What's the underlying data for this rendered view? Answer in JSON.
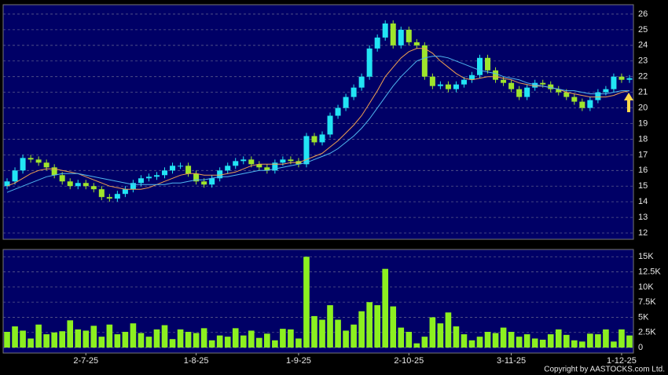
{
  "chart_data": [
    {
      "type": "candlestick",
      "up_color": "#22e4f4",
      "down_color": "#9fe52c",
      "open": [
        15.0,
        15.3,
        16,
        16.8,
        16.7,
        16.5,
        16.2,
        15.7,
        15.3,
        15,
        15.2,
        15,
        14.8,
        14.3,
        14.2,
        14.5,
        14.8,
        15.2,
        15.5,
        15.6,
        15.7,
        16,
        16.3,
        16.3,
        15.8,
        15.3,
        15.1,
        15.5,
        16,
        16.3,
        16.6,
        16.7,
        16.4,
        16.2,
        16,
        16.5,
        16.7,
        16.6,
        16.4,
        18.2,
        17.8,
        18.3,
        19.5,
        20,
        20.7,
        21.3,
        22,
        23.8,
        24.5,
        25.4,
        24,
        25,
        24.2,
        24,
        22,
        21.4,
        21.5,
        21.2,
        21.5,
        21.8,
        22.1,
        23.2,
        22.4,
        21.8,
        21.6,
        21.2,
        20.7,
        21.3,
        21.6,
        21.5,
        21.2,
        21,
        20.7,
        20.4,
        20,
        20.5,
        21,
        21.2,
        22,
        21.8
      ],
      "high": [
        15.5,
        16.2,
        17,
        17,
        16.9,
        16.7,
        16.4,
        15.9,
        15.5,
        15.4,
        15.4,
        15.2,
        15,
        14.5,
        14.7,
        15,
        15.4,
        15.7,
        15.8,
        15.9,
        16.2,
        16.5,
        16.5,
        16.5,
        16,
        15.5,
        15.7,
        16.2,
        16.5,
        16.8,
        16.9,
        16.9,
        16.6,
        16.4,
        16.7,
        16.9,
        16.9,
        16.8,
        18.4,
        18.4,
        18.5,
        19.7,
        20.2,
        20.9,
        21.5,
        22.2,
        24,
        24.7,
        25.6,
        25.6,
        25.2,
        25.2,
        24.4,
        24.2,
        22.2,
        21.7,
        21.7,
        21.7,
        22,
        22.3,
        23.4,
        23.4,
        22.6,
        22,
        21.8,
        21.4,
        21.5,
        21.8,
        21.8,
        21.7,
        21.4,
        21.2,
        20.9,
        20.6,
        20.7,
        21.2,
        21.4,
        22.2,
        22.2,
        22.1
      ],
      "low": [
        14.8,
        15.1,
        15.8,
        16.5,
        16.3,
        16,
        15.5,
        15.1,
        14.8,
        14.8,
        14.8,
        14.6,
        14.1,
        14,
        14,
        14.3,
        14.6,
        15,
        15.3,
        15.4,
        15.5,
        15.8,
        16.1,
        15.6,
        15.1,
        14.9,
        14.9,
        15.3,
        15.8,
        16.1,
        16.4,
        16.2,
        16,
        15.8,
        15.8,
        16.3,
        16.4,
        16.2,
        16.2,
        17.6,
        17.6,
        18.1,
        19.3,
        19.8,
        20.5,
        21.1,
        21.8,
        23.6,
        24.3,
        23.8,
        23.8,
        24,
        23.8,
        21.8,
        21.2,
        21.2,
        21,
        21,
        21.3,
        21.6,
        21.9,
        22.2,
        21.6,
        21.4,
        21,
        20.5,
        20.5,
        21.1,
        21.3,
        21,
        20.8,
        20.5,
        20.2,
        19.8,
        19.8,
        20.3,
        20.8,
        21,
        21.6,
        21.6
      ],
      "close": [
        15.3,
        16,
        16.8,
        16.7,
        16.5,
        16.2,
        15.7,
        15.3,
        15,
        15.2,
        15,
        14.8,
        14.3,
        14.2,
        14.5,
        14.8,
        15.2,
        15.5,
        15.6,
        15.7,
        16,
        16.3,
        16.3,
        15.8,
        15.3,
        15.1,
        15.5,
        16,
        16.3,
        16.6,
        16.7,
        16.4,
        16.2,
        16,
        16.5,
        16.7,
        16.6,
        16.4,
        18.2,
        17.8,
        18.3,
        19.5,
        20,
        20.7,
        21.3,
        22,
        23.8,
        24.5,
        25.4,
        24,
        25,
        24.2,
        24,
        22,
        21.4,
        21.5,
        21.2,
        21.5,
        21.8,
        22.1,
        23.2,
        22.4,
        21.8,
        21.6,
        21.2,
        20.7,
        21.3,
        21.6,
        21.5,
        21.2,
        21,
        20.7,
        20.4,
        20,
        20.5,
        21,
        21.2,
        22,
        21.8,
        21.9
      ],
      "series": [
        {
          "color": "#f0a050",
          "values": [
            15.0,
            15.2,
            15.5,
            15.8,
            16,
            16.1,
            16.1,
            16,
            15.9,
            15.8,
            15.6,
            15.4,
            15.2,
            15,
            14.9,
            14.8,
            14.8,
            14.8,
            14.9,
            15.1,
            15.3,
            15.5,
            15.7,
            15.8,
            15.8,
            15.7,
            15.7,
            15.7,
            15.8,
            15.9,
            16.1,
            16.3,
            16.4,
            16.4,
            16.4,
            16.4,
            16.5,
            16.5,
            16.7,
            16.9,
            17.1,
            17.5,
            17.9,
            18.4,
            18.9,
            19.5,
            20.3,
            21.1,
            22,
            22.6,
            23.2,
            23.6,
            23.8,
            23.8,
            23.5,
            23,
            22.6,
            22.2,
            21.9,
            21.8,
            21.9,
            22,
            22,
            21.9,
            21.8,
            21.6,
            21.5,
            21.4,
            21.4,
            21.3,
            21.2,
            21,
            20.9,
            20.8,
            20.7,
            20.7,
            20.7,
            20.8,
            21,
            21.1
          ]
        },
        {
          "color": "#50b8f0",
          "values": [
            14.6,
            14.8,
            15,
            15.2,
            15.4,
            15.6,
            15.7,
            15.8,
            15.8,
            15.8,
            15.7,
            15.6,
            15.5,
            15.4,
            15.3,
            15.2,
            15.1,
            15.1,
            15.1,
            15.1,
            15.1,
            15.2,
            15.2,
            15.3,
            15.4,
            15.4,
            15.5,
            15.6,
            15.6,
            15.7,
            15.8,
            15.9,
            16,
            16,
            16.1,
            16.2,
            16.3,
            16.4,
            16.5,
            16.7,
            16.9,
            17.1,
            17.4,
            17.8,
            18.2,
            18.7,
            19.3,
            20,
            20.7,
            21.4,
            22,
            22.5,
            23,
            23.2,
            23.3,
            23.3,
            23.2,
            23,
            22.8,
            22.6,
            22.4,
            22.3,
            22.2,
            22,
            21.9,
            21.8,
            21.6,
            21.5,
            21.4,
            21.3,
            21.2,
            21.1,
            21.1,
            21,
            20.9,
            20.9,
            20.9,
            21,
            21.1,
            21.1
          ]
        }
      ],
      "ylim": [
        11.6,
        26.6
      ],
      "yticks": [
        12,
        13,
        14,
        15,
        16,
        17,
        18,
        19,
        20,
        21,
        22,
        23,
        24,
        25,
        26
      ],
      "grid": true
    },
    {
      "type": "bar",
      "color": "#8cf020",
      "categories": [
        null,
        null,
        null,
        null,
        null,
        null,
        null,
        null,
        null,
        null,
        "2-7-25",
        null,
        null,
        null,
        null,
        null,
        null,
        null,
        null,
        null,
        null,
        null,
        null,
        null,
        "1-8-25",
        null,
        null,
        null,
        null,
        null,
        null,
        null,
        null,
        null,
        null,
        null,
        null,
        "1-9-25",
        null,
        null,
        null,
        null,
        null,
        null,
        null,
        null,
        null,
        null,
        null,
        null,
        null,
        "2-10-25",
        null,
        null,
        null,
        null,
        null,
        null,
        null,
        null,
        null,
        null,
        null,
        null,
        "3-11-25",
        null,
        null,
        null,
        null,
        null,
        null,
        null,
        null,
        null,
        null,
        null,
        null,
        null,
        "1-12-25",
        null
      ],
      "values": [
        2600,
        3500,
        2800,
        1500,
        3800,
        2200,
        2500,
        2700,
        4500,
        3000,
        2800,
        3600,
        1800,
        3800,
        2200,
        2600,
        4000,
        2400,
        1800,
        3000,
        3700,
        1400,
        3000,
        2600,
        2400,
        3200,
        1200,
        2000,
        1800,
        3200,
        2000,
        2800,
        1600,
        2300,
        1200,
        3100,
        3000,
        1500,
        15000,
        5200,
        4600,
        7000,
        4600,
        2800,
        3800,
        6000,
        7500,
        7000,
        13000,
        6800,
        3300,
        2600,
        700,
        1800,
        5000,
        4000,
        5800,
        3500,
        2200,
        1200,
        1800,
        2600,
        2400,
        3300,
        2600,
        1800,
        2200,
        1500,
        1300,
        2200,
        3000,
        2100,
        1200,
        1000,
        2300,
        2200,
        3000,
        1000,
        3000,
        2000
      ],
      "ylim": [
        -900,
        16200
      ],
      "yticks": [
        0,
        {
          "value": 2500,
          "label": "2.5K"
        },
        {
          "value": 5000,
          "label": "5K"
        },
        {
          "value": 7500,
          "label": "7.5K"
        },
        {
          "value": 10000,
          "label": "10K"
        },
        {
          "value": 12500,
          "label": "12.5K"
        },
        {
          "value": 15000,
          "label": "15K"
        }
      ],
      "grid": true
    },
    {
      "type": "note",
      "text": "Copyright by AASTOCKS.com Ltd."
    }
  ]
}
